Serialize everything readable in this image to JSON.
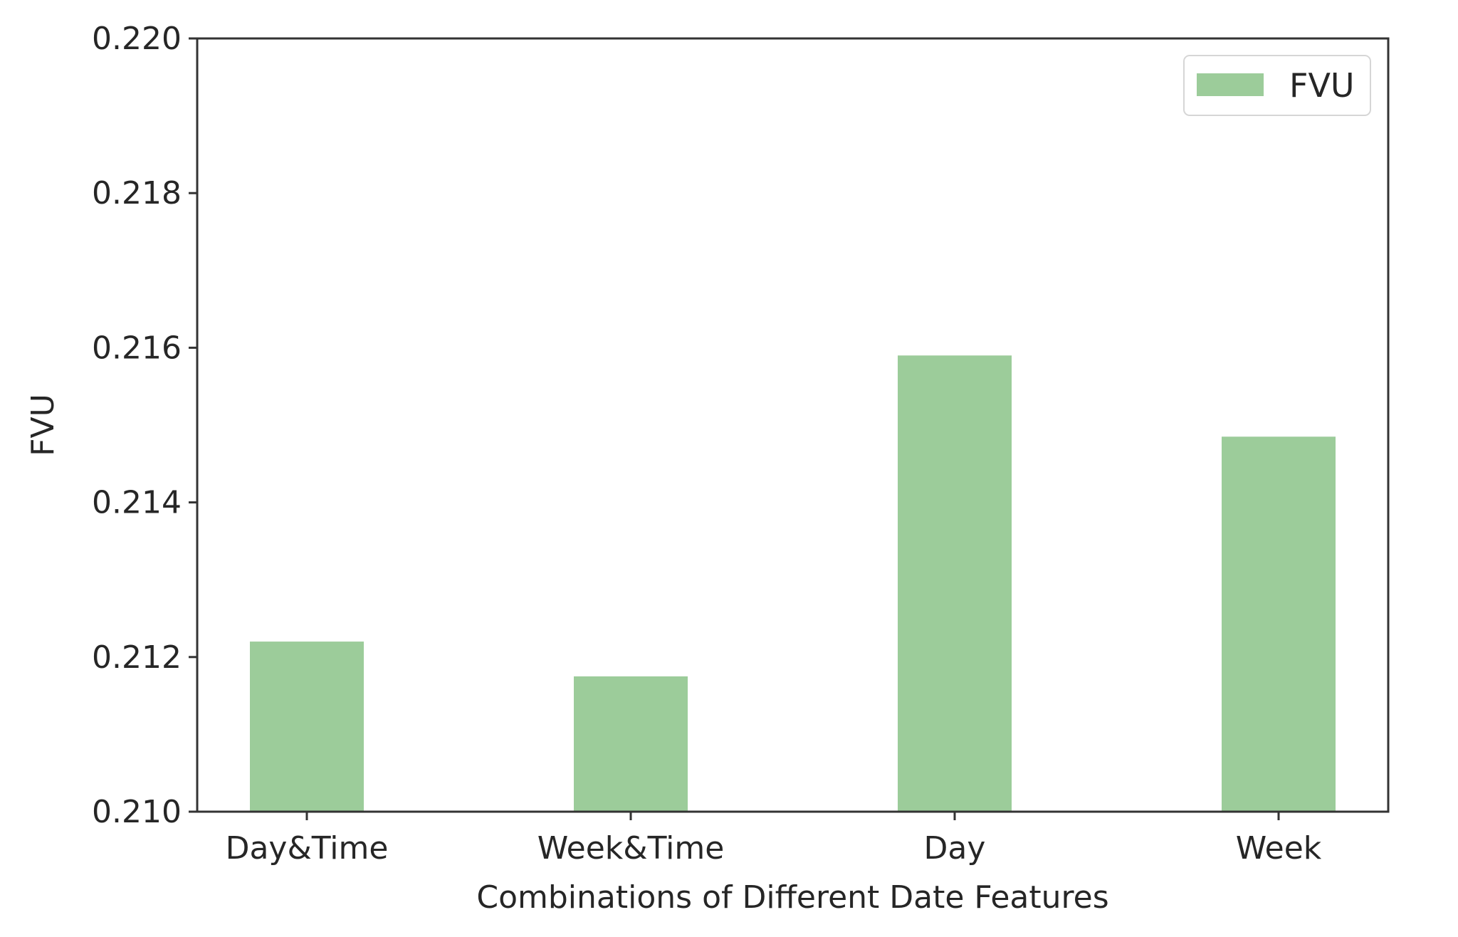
{
  "chart_data": {
    "type": "bar",
    "categories": [
      "Day&Time",
      "Week&Time",
      "Day",
      "Week"
    ],
    "series": [
      {
        "name": "FVU",
        "values": [
          0.2122,
          0.21175,
          0.2159,
          0.21485
        ],
        "color": "#9ccc9a"
      }
    ],
    "xlabel": "Combinations of Different Date Features",
    "ylabel": "FVU",
    "ylim": [
      0.21,
      0.22
    ],
    "yticks": [
      "0.210",
      "0.212",
      "0.214",
      "0.216",
      "0.218",
      "0.220"
    ],
    "grid": false,
    "legend": {
      "position": "top-right",
      "entries": [
        "FVU"
      ]
    }
  }
}
